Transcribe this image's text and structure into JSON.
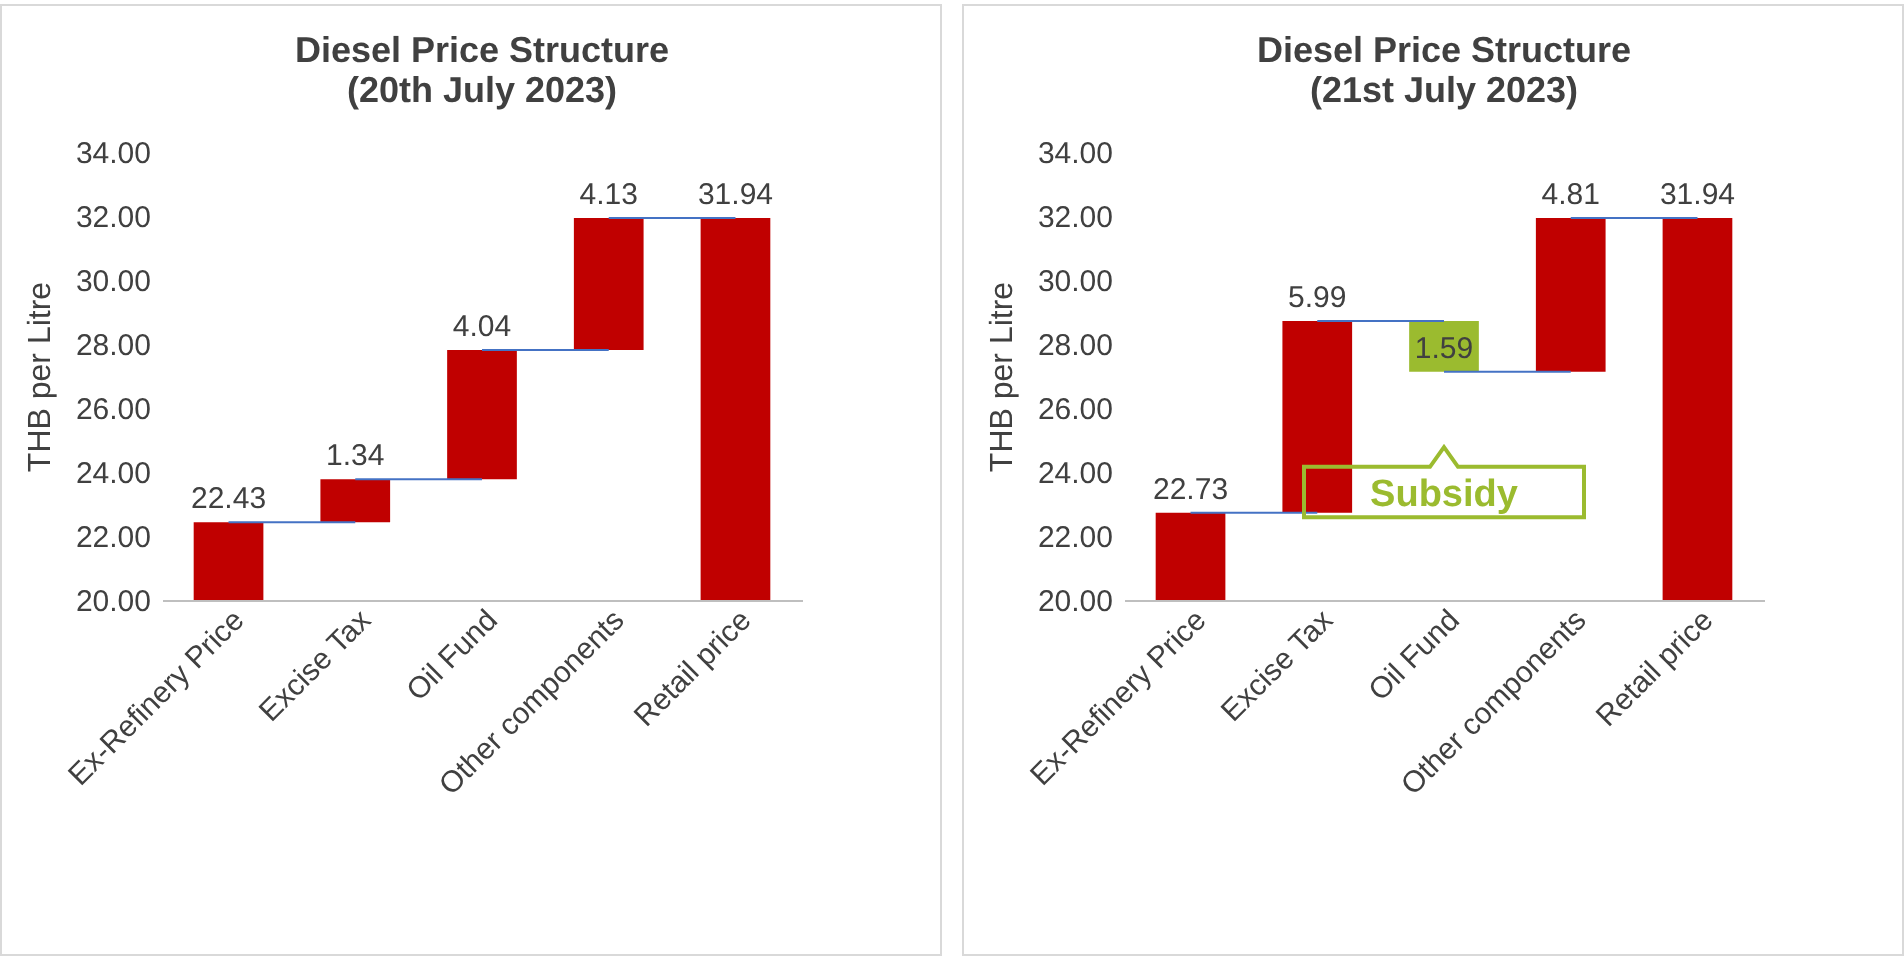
{
  "chart_data": [
    {
      "type": "bar",
      "title": [
        "Diesel Price Structure",
        "(20th July 2023)"
      ],
      "ylabel": "THB per Litre",
      "categories": [
        "Ex-Refinery Price",
        "Excise Tax",
        "Oil Fund",
        "Other components",
        "Retail price"
      ],
      "base": [
        0,
        22.43,
        23.77,
        27.81,
        0
      ],
      "values": [
        22.43,
        1.34,
        4.04,
        4.13,
        31.94
      ],
      "colors": [
        "#c00000",
        "#c00000",
        "#c00000",
        "#c00000",
        "#c00000"
      ],
      "ylim": [
        20,
        34
      ],
      "yticks": [
        {
          "value": 20,
          "label": "20.00"
        },
        {
          "value": 22,
          "label": "22.00"
        },
        {
          "value": 24,
          "label": "24.00"
        },
        {
          "value": 26,
          "label": "26.00"
        },
        {
          "value": 28,
          "label": "28.00"
        },
        {
          "value": 30,
          "label": "30.00"
        },
        {
          "value": 32,
          "label": "32.00"
        },
        {
          "value": 34,
          "label": "34.00"
        }
      ],
      "data_labels": true,
      "grid": false
    },
    {
      "type": "bar",
      "title": [
        "Diesel Price Structure",
        "(21st July 2023)"
      ],
      "ylabel": "THB per Litre",
      "categories": [
        "Ex-Refinery Price",
        "Excise Tax",
        "Oil Fund",
        "Other components",
        "Retail price"
      ],
      "base": [
        0,
        22.73,
        28.72,
        27.13,
        0
      ],
      "values": [
        22.73,
        5.99,
        -1.59,
        4.81,
        31.94
      ],
      "colors": [
        "#c00000",
        "#c00000",
        "#9bbb2f",
        "#c00000",
        "#c00000"
      ],
      "value_labels": [
        "22.73",
        "5.99",
        "1.59",
        "4.81",
        "31.94"
      ],
      "annotations": [
        "Subsidy"
      ],
      "ylim": [
        20,
        34
      ],
      "yticks": [
        {
          "value": 20,
          "label": "20.00"
        },
        {
          "value": 22,
          "label": "22.00"
        },
        {
          "value": 24,
          "label": "24.00"
        },
        {
          "value": 26,
          "label": "26.00"
        },
        {
          "value": 28,
          "label": "28.00"
        },
        {
          "value": 30,
          "label": "30.00"
        },
        {
          "value": 32,
          "label": "32.00"
        },
        {
          "value": 34,
          "label": "34.00"
        }
      ],
      "grid": false
    }
  ]
}
